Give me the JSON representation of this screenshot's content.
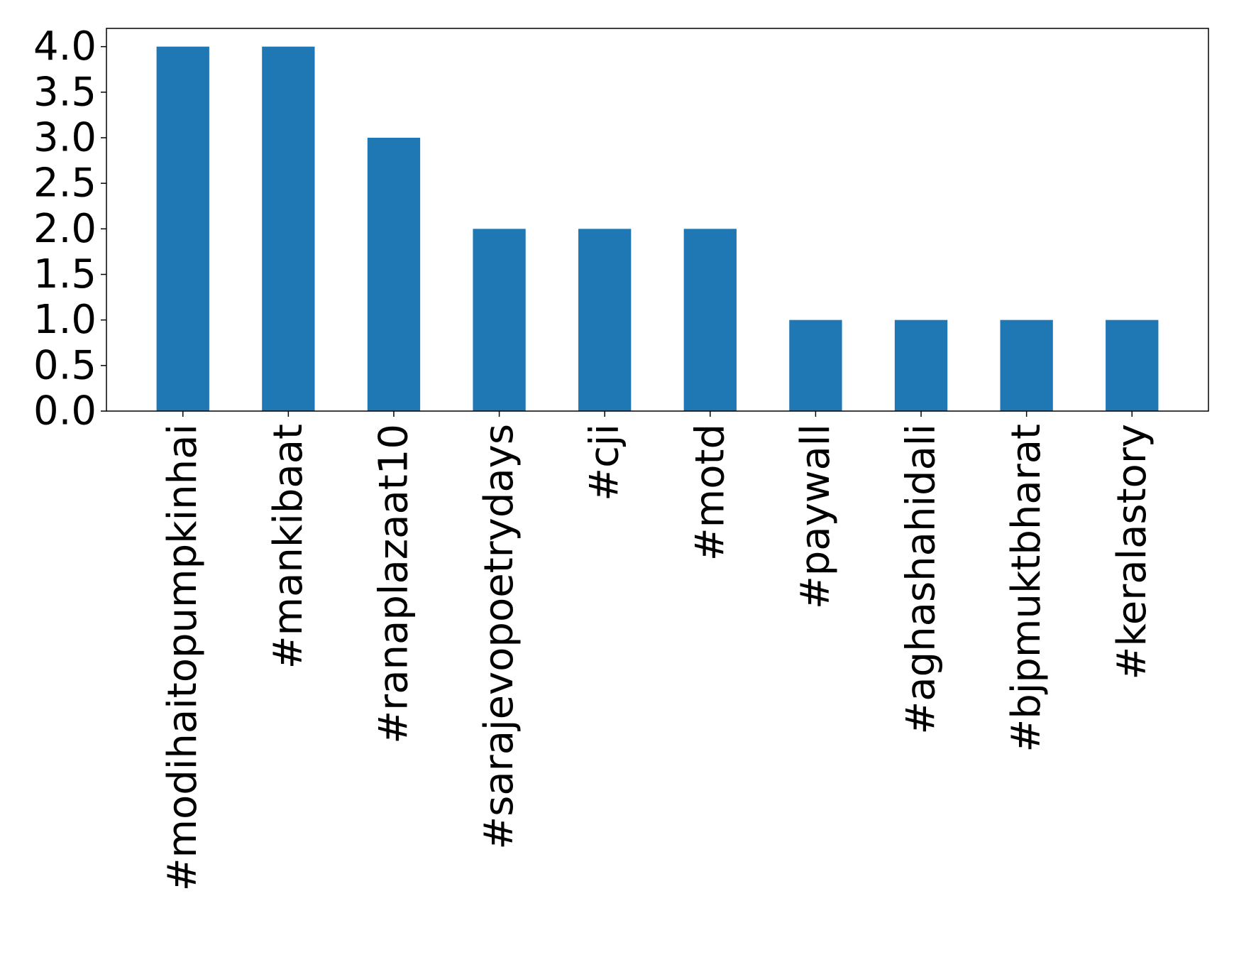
{
  "chart_data": {
    "type": "bar",
    "title": "",
    "xlabel": "",
    "ylabel": "",
    "categories": [
      "#modihaitopumpkinhai",
      "#mankibaat",
      "#ranaplazaat10",
      "#sarajevopoetrydays",
      "#cji",
      "#motd",
      "#paywall",
      "#aghashahidali",
      "#bjpmuktbharat",
      "#keralastory"
    ],
    "values": [
      4,
      4,
      3,
      2,
      2,
      2,
      1,
      1,
      1,
      1
    ],
    "ylim": [
      0,
      4.2
    ],
    "yticks": [
      "0.0",
      "0.5",
      "1.0",
      "1.5",
      "2.0",
      "2.5",
      "3.0",
      "3.5",
      "4.0"
    ],
    "grid": false,
    "legend": "none",
    "bar_color": "#1f77b4"
  }
}
